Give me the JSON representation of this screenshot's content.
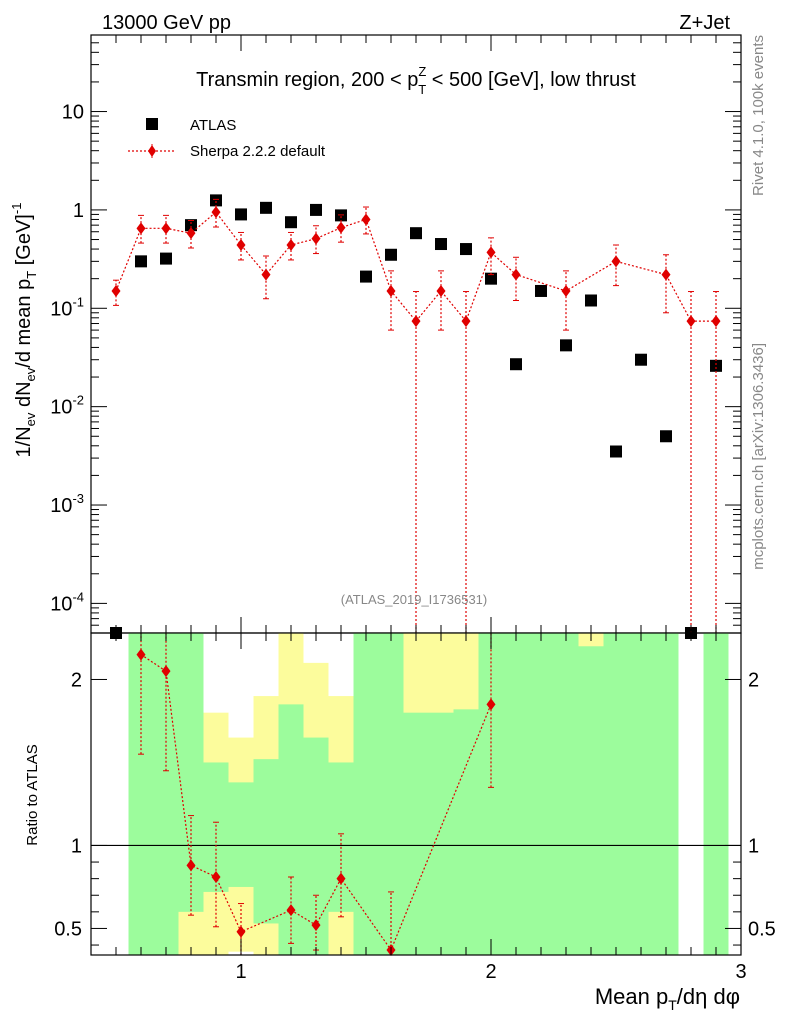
{
  "header": {
    "left": "13000 GeV pp",
    "right": "Z+Jet",
    "side_version": "Rivet 4.1.0,  100k events",
    "side_source": "mcplots.cern.ch [arXiv:1306.3436]"
  },
  "colors": {
    "atlas": "#000000",
    "sherpa": "#e00000",
    "band_green": "#9cfc9c",
    "band_yellow": "#fcfc9c"
  },
  "chart_data": [
    {
      "type": "scatter",
      "title": "Transmin region, 200 < pTZ < 500 [GeV], low thrust",
      "title_parts": {
        "pre": "Transmin region, 200 < p",
        "sub": "T",
        "sup": "Z",
        "post": " < 500 [GeV], low thrust"
      },
      "ylabel": "1/Nev dNev/d mean pT [GeV]-1",
      "ylabel_parts": {
        "a": "1/N",
        "b": "ev",
        "c": " dN",
        "d": "ev",
        "e": "/d mean p",
        "f": "T",
        "g": " [GeV]",
        "h": "-1"
      },
      "yscale": "log",
      "xlim": [
        0.4,
        3.0
      ],
      "ylim": [
        5e-05,
        60
      ],
      "ytick_labels": [
        {
          "base": "10",
          "exp": "-4"
        },
        {
          "base": "10",
          "exp": "-3"
        },
        {
          "base": "10",
          "exp": "-2"
        },
        {
          "base": "10",
          "exp": "-1"
        },
        {
          "base": "1",
          "exp": ""
        },
        {
          "base": "10",
          "exp": ""
        }
      ],
      "watermark": "(ATLAS_2019_I1736531)",
      "legend": {
        "position": "top-left",
        "atlas_label": "ATLAS",
        "sherpa_label": "Sherpa 2.2.2 default"
      },
      "series": [
        {
          "name": "ATLAS",
          "x": [
            0.5,
            0.6,
            0.7,
            0.8,
            0.9,
            1.0,
            1.1,
            1.2,
            1.3,
            1.4,
            1.5,
            1.6,
            1.7,
            1.8,
            1.9,
            2.0,
            2.1,
            2.2,
            2.3,
            2.4,
            2.5,
            2.6,
            2.7,
            2.8,
            2.9
          ],
          "y": [
            5e-05,
            0.3,
            0.32,
            0.7,
            1.25,
            0.9,
            1.05,
            0.75,
            1.0,
            0.88,
            0.21,
            0.35,
            0.58,
            0.45,
            0.4,
            0.2,
            0.027,
            0.15,
            0.042,
            0.12,
            0.0035,
            0.03,
            0.005,
            5e-05,
            0.026
          ]
        },
        {
          "name": "Sherpa 2.2.2 default",
          "x": [
            0.5,
            0.6,
            0.7,
            0.8,
            0.9,
            1.0,
            1.1,
            1.2,
            1.3,
            1.4,
            1.5,
            1.6,
            1.7,
            1.8,
            1.9,
            2.0,
            2.1,
            2.3,
            2.5,
            2.7,
            2.8,
            2.9
          ],
          "y": [
            0.15,
            0.65,
            0.65,
            0.58,
            0.95,
            0.44,
            0.22,
            0.44,
            0.51,
            0.66,
            0.8,
            0.15,
            0.074,
            0.15,
            0.074,
            0.37,
            0.22,
            0.15,
            0.3,
            0.22,
            0.074,
            0.074
          ],
          "yerr_lo": [
            0.043,
            0.19,
            0.19,
            0.17,
            0.28,
            0.13,
            0.095,
            0.13,
            0.15,
            0.19,
            0.23,
            0.09,
            0.074,
            0.09,
            0.074,
            0.15,
            0.1,
            0.09,
            0.13,
            0.13,
            0.074,
            0.074
          ],
          "yerr_hi": [
            0.043,
            0.23,
            0.23,
            0.2,
            0.33,
            0.15,
            0.12,
            0.15,
            0.18,
            0.23,
            0.27,
            0.09,
            0.074,
            0.09,
            0.074,
            0.15,
            0.11,
            0.09,
            0.14,
            0.13,
            0.074,
            0.074
          ]
        }
      ]
    },
    {
      "type": "scatter",
      "ylabel": "Ratio to ATLAS",
      "xlabel": "Mean pT/dη dφ",
      "xlabel_parts": {
        "a": "Mean p",
        "b": "T",
        "c": "/dη dφ"
      },
      "xlim": [
        0.4,
        3.0
      ],
      "ylim": [
        0.34,
        2.28
      ],
      "yticks": [
        0.5,
        1,
        2
      ],
      "ytick_labels": [
        "0.5",
        "1",
        "2"
      ],
      "xticks": [
        1,
        2,
        3
      ],
      "xtick_labels": [
        "1",
        "2",
        "3"
      ],
      "reference_line": 1,
      "bands": [
        {
          "x0": 0.55,
          "x1": 0.65,
          "g_lo": 0.34,
          "g_hi": 2.28,
          "y_lo": 0.34,
          "y_hi": 2.28
        },
        {
          "x0": 0.65,
          "x1": 0.75,
          "g_lo": 0.34,
          "g_hi": 2.28,
          "y_lo": 0.34,
          "y_hi": 2.28
        },
        {
          "x0": 0.75,
          "x1": 0.85,
          "g_lo": 0.6,
          "g_hi": 2.28,
          "y_lo": 0.34,
          "y_hi": 2.28
        },
        {
          "x0": 0.85,
          "x1": 0.95,
          "g_lo": 0.72,
          "g_hi": 1.5,
          "y_lo": 0.34,
          "y_hi": 1.8
        },
        {
          "x0": 0.95,
          "x1": 1.05,
          "g_lo": 0.75,
          "g_hi": 1.38,
          "y_lo": 0.36,
          "y_hi": 1.65
        },
        {
          "x0": 1.05,
          "x1": 1.15,
          "g_lo": 0.53,
          "g_hi": 1.52,
          "y_lo": 0.34,
          "y_hi": 1.9
        },
        {
          "x0": 1.15,
          "x1": 1.25,
          "g_lo": 0.34,
          "g_hi": 1.85,
          "y_lo": 0.34,
          "y_hi": 2.28
        },
        {
          "x0": 1.25,
          "x1": 1.35,
          "g_lo": 0.34,
          "g_hi": 1.65,
          "y_lo": 0.34,
          "y_hi": 2.1
        },
        {
          "x0": 1.35,
          "x1": 1.45,
          "g_lo": 0.6,
          "g_hi": 1.5,
          "y_lo": 0.34,
          "y_hi": 1.9
        },
        {
          "x0": 1.45,
          "x1": 1.55,
          "g_lo": 0.34,
          "g_hi": 2.28,
          "y_lo": 0.34,
          "y_hi": 2.28
        },
        {
          "x0": 1.55,
          "x1": 1.65,
          "g_lo": 0.34,
          "g_hi": 2.28,
          "y_lo": 0.34,
          "y_hi": 2.28
        },
        {
          "x0": 1.65,
          "x1": 1.75,
          "g_lo": 0.34,
          "g_hi": 1.8,
          "y_lo": 0.34,
          "y_hi": 2.28
        },
        {
          "x0": 1.75,
          "x1": 1.85,
          "g_lo": 0.34,
          "g_hi": 1.8,
          "y_lo": 0.34,
          "y_hi": 2.28
        },
        {
          "x0": 1.85,
          "x1": 1.95,
          "g_lo": 0.34,
          "g_hi": 1.82,
          "y_lo": 0.34,
          "y_hi": 2.28
        },
        {
          "x0": 1.95,
          "x1": 2.05,
          "g_lo": 0.34,
          "g_hi": 2.28,
          "y_lo": 0.34,
          "y_hi": 2.28
        },
        {
          "x0": 2.05,
          "x1": 2.15,
          "g_lo": 0.34,
          "g_hi": 2.28,
          "y_lo": 0.34,
          "y_hi": 2.28
        },
        {
          "x0": 2.15,
          "x1": 2.25,
          "g_lo": 0.34,
          "g_hi": 2.28,
          "y_lo": 0.34,
          "y_hi": 2.28
        },
        {
          "x0": 2.25,
          "x1": 2.35,
          "g_lo": 0.34,
          "g_hi": 2.28,
          "y_lo": 0.34,
          "y_hi": 2.28
        },
        {
          "x0": 2.35,
          "x1": 2.45,
          "g_lo": 0.34,
          "g_hi": 2.2,
          "y_lo": 0.34,
          "y_hi": 2.28
        },
        {
          "x0": 2.45,
          "x1": 2.55,
          "g_lo": 0.34,
          "g_hi": 2.28,
          "y_lo": 0.34,
          "y_hi": 2.28
        },
        {
          "x0": 2.55,
          "x1": 2.65,
          "g_lo": 0.34,
          "g_hi": 2.28,
          "y_lo": 0.34,
          "y_hi": 2.28
        },
        {
          "x0": 2.65,
          "x1": 2.75,
          "g_lo": 0.34,
          "g_hi": 2.28,
          "y_lo": 0.34,
          "y_hi": 2.28
        },
        {
          "x0": 2.85,
          "x1": 2.95,
          "g_lo": 0.34,
          "g_hi": 2.28,
          "y_lo": 0.34,
          "y_hi": 2.28
        }
      ],
      "series": [
        {
          "name": "Sherpa / ATLAS",
          "x": [
            0.6,
            0.7,
            0.8,
            0.9,
            1.0,
            1.2,
            1.3,
            1.4,
            1.6,
            2.0
          ],
          "y": [
            2.15,
            2.05,
            0.88,
            0.81,
            0.48,
            0.61,
            0.52,
            0.8,
            0.37,
            1.85
          ],
          "yerr_lo": [
            0.6,
            0.6,
            0.3,
            0.3,
            0.14,
            0.2,
            0.15,
            0.23,
            0.1,
            0.5
          ],
          "yerr_hi": [
            0.7,
            0.7,
            0.3,
            0.33,
            0.17,
            0.2,
            0.18,
            0.27,
            0.35,
            0.7
          ]
        }
      ]
    }
  ]
}
